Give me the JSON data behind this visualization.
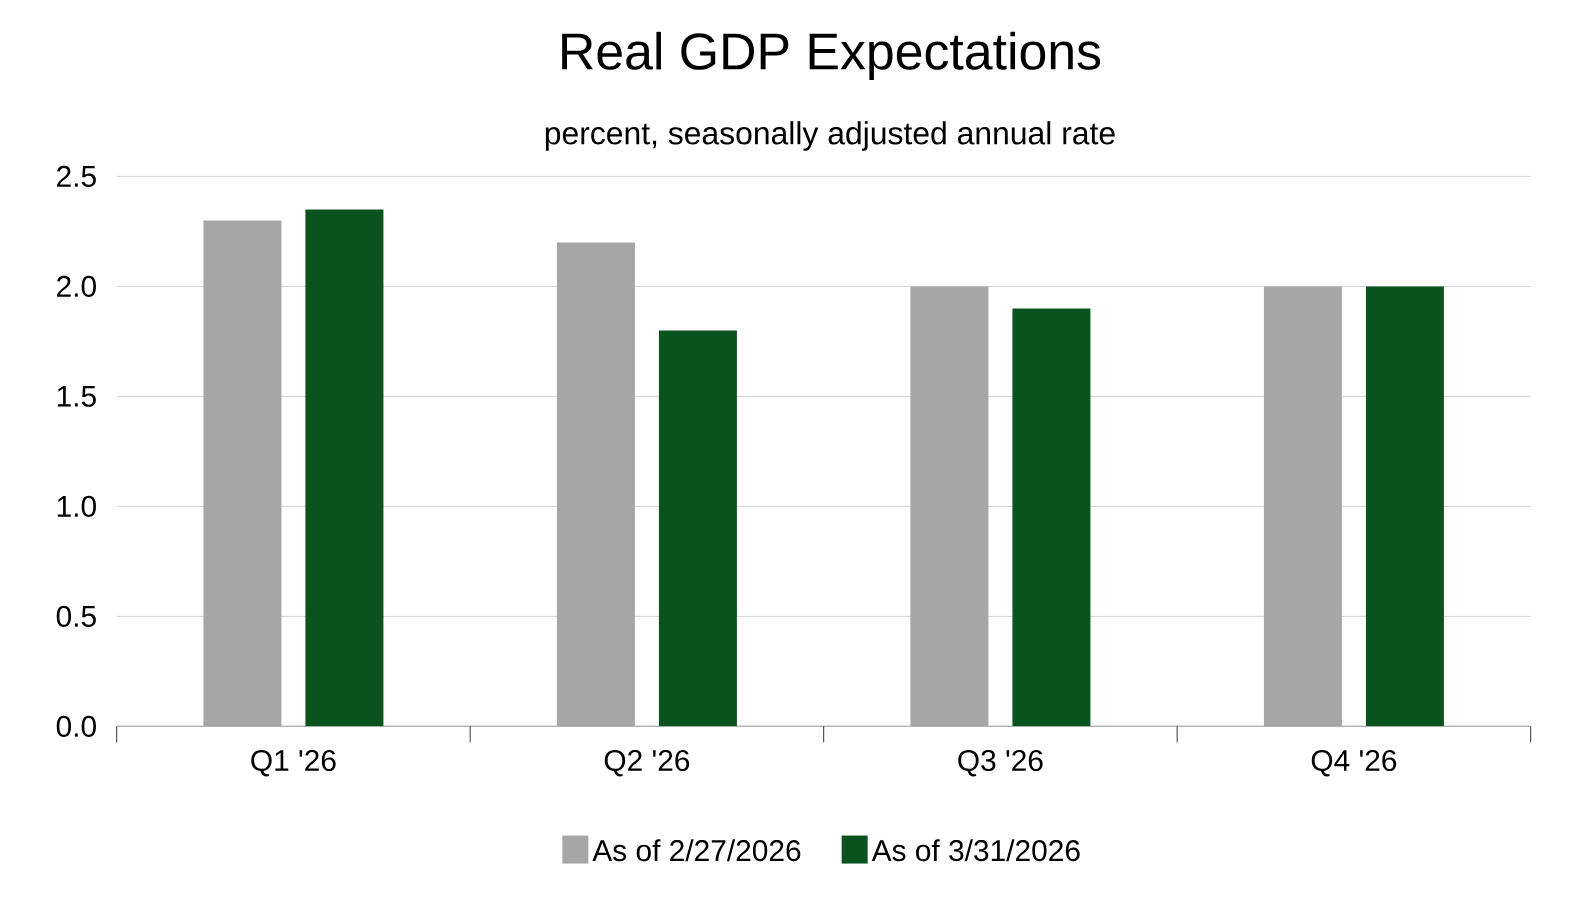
{
  "chart_data": {
    "type": "bar",
    "title": "Real GDP Expectations",
    "subtitle": "percent, seasonally adjusted annual rate",
    "categories": [
      "Q1 '26",
      "Q2 '26",
      "Q3 '26",
      "Q4 '26"
    ],
    "series": [
      {
        "name": "As of 2/27/2026",
        "color": "#a6a6a6",
        "values": [
          2.3,
          2.2,
          2.0,
          2.0
        ]
      },
      {
        "name": "As of 3/31/2026",
        "color": "#0b531e",
        "values": [
          2.35,
          1.8,
          1.9,
          2.0
        ]
      }
    ],
    "ylim": [
      0,
      2.5
    ],
    "yticks": [
      {
        "value": 0,
        "label": "0.0"
      },
      0.5,
      {
        "value": 1,
        "label": "1.0"
      },
      1.5,
      {
        "value": 2,
        "label": "2.0"
      },
      2.5
    ],
    "grid": "y",
    "legend": "bottom"
  }
}
